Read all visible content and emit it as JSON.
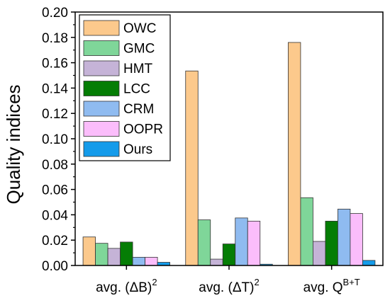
{
  "chart_data": {
    "type": "bar",
    "title": "",
    "xlabel": "",
    "ylabel": "Quality indices",
    "ylim": [
      0,
      0.2
    ],
    "yticks": [
      "0.00",
      "0.02",
      "0.04",
      "0.06",
      "0.08",
      "0.10",
      "0.12",
      "0.14",
      "0.16",
      "0.18",
      "0.20"
    ],
    "categories": [
      {
        "prefix": "avg. (ΔB)",
        "sup": "2"
      },
      {
        "prefix": "avg. (ΔT)",
        "sup": "2"
      },
      {
        "prefix": "avg. Q",
        "sup": "B+T"
      }
    ],
    "legend_position": "top-left",
    "grid": false,
    "series": [
      {
        "name": "OWC",
        "color": "#fcc98c",
        "values": [
          0.0225,
          0.1535,
          0.176
        ]
      },
      {
        "name": "GMC",
        "color": "#7fd699",
        "values": [
          0.0175,
          0.036,
          0.0535
        ]
      },
      {
        "name": "HMT",
        "color": "#c5b3d7",
        "values": [
          0.0135,
          0.005,
          0.019
        ]
      },
      {
        "name": "LCC",
        "color": "#057d05",
        "values": [
          0.0185,
          0.017,
          0.035
        ]
      },
      {
        "name": "CRM",
        "color": "#8fbbf0",
        "values": [
          0.0065,
          0.0375,
          0.0445
        ]
      },
      {
        "name": "OOPR",
        "color": "#fbbdfb",
        "values": [
          0.0065,
          0.035,
          0.041
        ]
      },
      {
        "name": "Ours",
        "color": "#149bea",
        "values": [
          0.0025,
          0.001,
          0.004
        ]
      }
    ]
  }
}
